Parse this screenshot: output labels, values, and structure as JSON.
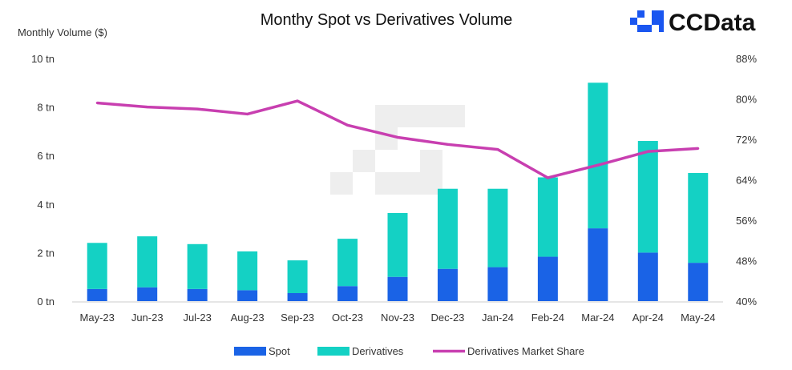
{
  "logo": {
    "text": "CCData",
    "color": "#1a56f0"
  },
  "chart_data": {
    "type": "bar",
    "stacked": true,
    "title": "Monthy Spot vs Derivatives Volume",
    "ylabel": "Monthly Volume ($)",
    "categories": [
      "May-23",
      "Jun-23",
      "Jul-23",
      "Aug-23",
      "Sep-23",
      "Oct-23",
      "Nov-23",
      "Dec-23",
      "Jan-24",
      "Feb-24",
      "Mar-24",
      "Apr-24",
      "May-24"
    ],
    "y_ticks": [
      "0 tn",
      "2 tn",
      "4 tn",
      "6 tn",
      "8 tn",
      "10 tn"
    ],
    "ylim": [
      0,
      10
    ],
    "y2_ticks": [
      "40%",
      "48%",
      "56%",
      "64%",
      "72%",
      "80%",
      "88%"
    ],
    "y2lim": [
      40,
      88
    ],
    "series": [
      {
        "name": "Spot",
        "kind": "bar",
        "axis": "left",
        "color": "#1a63e6",
        "values": [
          0.5,
          0.57,
          0.5,
          0.45,
          0.33,
          0.62,
          1.0,
          1.33,
          1.4,
          1.83,
          3.0,
          2.0,
          1.58
        ]
      },
      {
        "name": "Derivatives",
        "kind": "bar",
        "axis": "left",
        "color": "#14d1c4",
        "values": [
          1.9,
          2.1,
          1.85,
          1.6,
          1.35,
          1.95,
          2.63,
          3.3,
          3.23,
          3.27,
          6.0,
          4.6,
          3.7
        ]
      },
      {
        "name": "Derivatives Market Share",
        "kind": "line",
        "axis": "right",
        "color": "#c83fb0",
        "values": [
          79.2,
          78.4,
          78.0,
          77.0,
          79.6,
          74.8,
          72.4,
          71.0,
          70.0,
          64.4,
          66.9,
          69.6,
          70.2
        ]
      }
    ],
    "legend_position": "bottom",
    "grid": false
  }
}
